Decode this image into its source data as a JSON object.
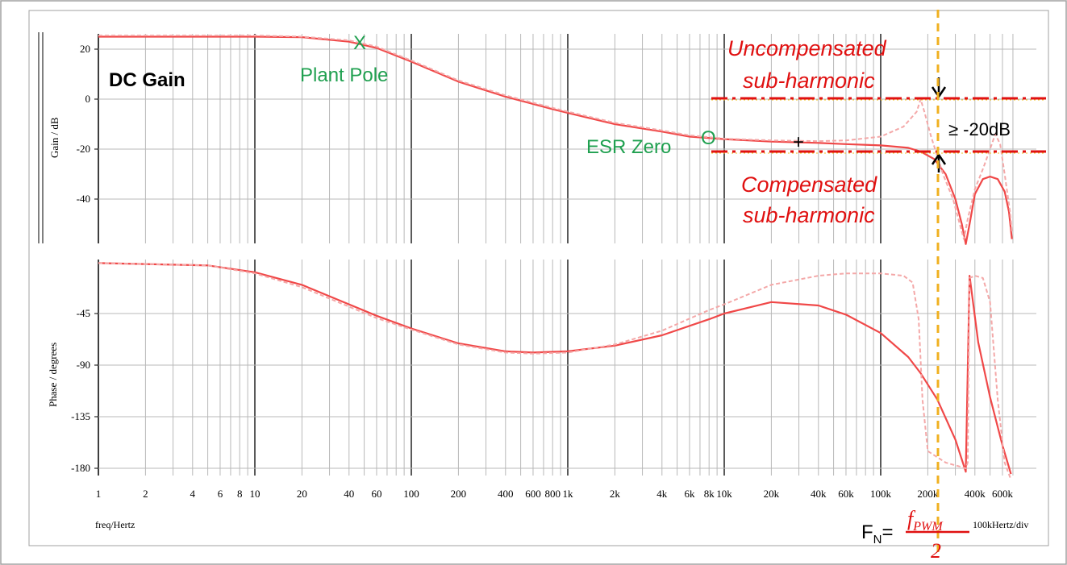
{
  "window": {
    "border_color": "#a0a0a0",
    "background": "#ffffff"
  },
  "labels": {
    "gain_axis": "Gain / dB",
    "phase_axis": "Phase / degrees",
    "freq_axis": "freq/Hertz",
    "scale": "100kHertz/div",
    "dc_gain": "DC Gain",
    "plant_pole": "Plant Pole",
    "plant_pole_marker": "X",
    "esr_zero": "ESR Zero",
    "esr_zero_marker": "O",
    "uncomp_line1": "Uncompensated",
    "uncomp_line2": "sub-harmonic",
    "comp_line1": "Compensated",
    "comp_line2": "sub-harmonic",
    "delta_db": "≥ -20dB",
    "cross_marker": "+",
    "fn_label": "F",
    "fn_sub": "N",
    "fn_eq": "=",
    "fn_num": "f",
    "fn_num_sub": "PWM",
    "fn_den": "2"
  },
  "colors": {
    "compensated": "#f04848",
    "uncompensated": "#f4a8a8",
    "annotation_red": "#e01010",
    "annotation_green": "#20a050",
    "fn_marker": "#f0b020",
    "grid_major": "#000000",
    "grid_minor": "#b8b8b8"
  },
  "chart_data": [
    {
      "type": "line",
      "x_scale": "log",
      "xlim": [
        1,
        700000
      ],
      "ylim": [
        -58,
        26
      ],
      "yticks": [
        20,
        0,
        -20,
        -40
      ],
      "ylabel": "Gain / dB",
      "series": [
        {
          "style": "solid",
          "points": [
            [
              1,
              25
            ],
            [
              10,
              25
            ],
            [
              20,
              24.8
            ],
            [
              40,
              23
            ],
            [
              60,
              20.5
            ],
            [
              100,
              15
            ],
            [
              200,
              7
            ],
            [
              400,
              1
            ],
            [
              800,
              -4
            ],
            [
              1000,
              -5.5
            ],
            [
              2000,
              -10
            ],
            [
              4000,
              -13
            ],
            [
              6000,
              -15
            ],
            [
              10000,
              -16
            ],
            [
              20000,
              -17
            ],
            [
              40000,
              -17.5
            ],
            [
              60000,
              -18
            ],
            [
              100000,
              -18.5
            ],
            [
              150000,
              -19.5
            ],
            [
              180000,
              -21
            ],
            [
              220000,
              -24
            ],
            [
              260000,
              -30
            ],
            [
              300000,
              -40
            ],
            [
              330000,
              -50
            ],
            [
              350000,
              -58
            ],
            [
              370000,
              -50
            ],
            [
              400000,
              -38
            ],
            [
              450000,
              -32
            ],
            [
              500000,
              -31
            ],
            [
              560000,
              -32
            ],
            [
              620000,
              -37
            ],
            [
              660000,
              -45
            ],
            [
              690000,
              -56
            ]
          ]
        },
        {
          "style": "dashed",
          "points": [
            [
              1,
              25.5
            ],
            [
              10,
              25.5
            ],
            [
              20,
              25
            ],
            [
              40,
              23.5
            ],
            [
              60,
              21
            ],
            [
              100,
              15.5
            ],
            [
              200,
              7.5
            ],
            [
              400,
              1.5
            ],
            [
              800,
              -3.5
            ],
            [
              1000,
              -5
            ],
            [
              2000,
              -9.5
            ],
            [
              4000,
              -12.5
            ],
            [
              6000,
              -14.5
            ],
            [
              10000,
              -15.8
            ],
            [
              20000,
              -16.5
            ],
            [
              40000,
              -16.8
            ],
            [
              60000,
              -16.5
            ],
            [
              100000,
              -15
            ],
            [
              140000,
              -11
            ],
            [
              170000,
              -5
            ],
            [
              180000,
              0
            ],
            [
              190000,
              -5
            ],
            [
              210000,
              -15
            ],
            [
              250000,
              -30
            ],
            [
              290000,
              -40
            ],
            [
              320000,
              -50
            ],
            [
              340000,
              -56
            ],
            [
              360000,
              -48
            ],
            [
              400000,
              -36
            ],
            [
              450000,
              -28
            ],
            [
              500000,
              -20
            ],
            [
              540000,
              -14
            ],
            [
              580000,
              -18
            ],
            [
              620000,
              -30
            ],
            [
              670000,
              -45
            ],
            [
              690000,
              -53
            ]
          ]
        }
      ]
    },
    {
      "type": "line",
      "x_scale": "log",
      "xlim": [
        1,
        700000
      ],
      "ylim": [
        -190,
        0
      ],
      "yticks": [
        -45,
        -90,
        -135,
        -180
      ],
      "ylabel": "Phase / degrees",
      "xlabel": "freq/Hertz",
      "x_tick_labels": [
        "1",
        "2",
        "4",
        "6",
        "8",
        "10",
        "20",
        "40",
        "60",
        "100",
        "200",
        "400",
        "600",
        "800",
        "1k",
        "2k",
        "4k",
        "6k",
        "8k",
        "10k",
        "20k",
        "40k",
        "60k",
        "100k",
        "200k",
        "400k",
        "600k"
      ],
      "x_tick_values": [
        1,
        2,
        4,
        6,
        8,
        10,
        20,
        40,
        60,
        100,
        200,
        400,
        600,
        800,
        1000,
        2000,
        4000,
        6000,
        8000,
        10000,
        20000,
        40000,
        60000,
        100000,
        200000,
        400000,
        600000
      ],
      "series": [
        {
          "style": "solid",
          "points": [
            [
              1,
              -1
            ],
            [
              5,
              -3
            ],
            [
              10,
              -9
            ],
            [
              20,
              -20
            ],
            [
              40,
              -37
            ],
            [
              60,
              -47
            ],
            [
              100,
              -58
            ],
            [
              200,
              -71
            ],
            [
              400,
              -78
            ],
            [
              600,
              -79
            ],
            [
              1000,
              -78
            ],
            [
              2000,
              -73
            ],
            [
              4000,
              -64
            ],
            [
              8000,
              -50
            ],
            [
              10000,
              -45
            ],
            [
              20000,
              -35
            ],
            [
              40000,
              -38
            ],
            [
              60000,
              -46
            ],
            [
              100000,
              -62
            ],
            [
              150000,
              -83
            ],
            [
              180000,
              -97
            ],
            [
              230000,
              -120
            ],
            [
              300000,
              -155
            ],
            [
              350000,
              -183
            ],
            [
              370000,
              -12
            ],
            [
              420000,
              -70
            ],
            [
              500000,
              -118
            ],
            [
              600000,
              -160
            ],
            [
              680000,
              -185
            ]
          ]
        },
        {
          "style": "dashed",
          "points": [
            [
              1,
              -1
            ],
            [
              5,
              -3
            ],
            [
              10,
              -10
            ],
            [
              20,
              -22
            ],
            [
              40,
              -39
            ],
            [
              60,
              -49
            ],
            [
              100,
              -59
            ],
            [
              200,
              -72
            ],
            [
              400,
              -79
            ],
            [
              600,
              -80
            ],
            [
              1000,
              -79
            ],
            [
              2000,
              -72
            ],
            [
              4000,
              -60
            ],
            [
              8000,
              -42
            ],
            [
              10000,
              -37
            ],
            [
              20000,
              -20
            ],
            [
              40000,
              -12
            ],
            [
              60000,
              -10
            ],
            [
              100000,
              -10
            ],
            [
              140000,
              -12
            ],
            [
              160000,
              -18
            ],
            [
              175000,
              -50
            ],
            [
              185000,
              -120
            ],
            [
              200000,
              -165
            ],
            [
              260000,
              -175
            ],
            [
              350000,
              -180
            ],
            [
              360000,
              -175
            ],
            [
              370000,
              -14
            ],
            [
              400000,
              -12
            ],
            [
              450000,
              -14
            ],
            [
              500000,
              -35
            ],
            [
              560000,
              -120
            ],
            [
              620000,
              -175
            ],
            [
              680000,
              -190
            ]
          ]
        }
      ]
    }
  ]
}
